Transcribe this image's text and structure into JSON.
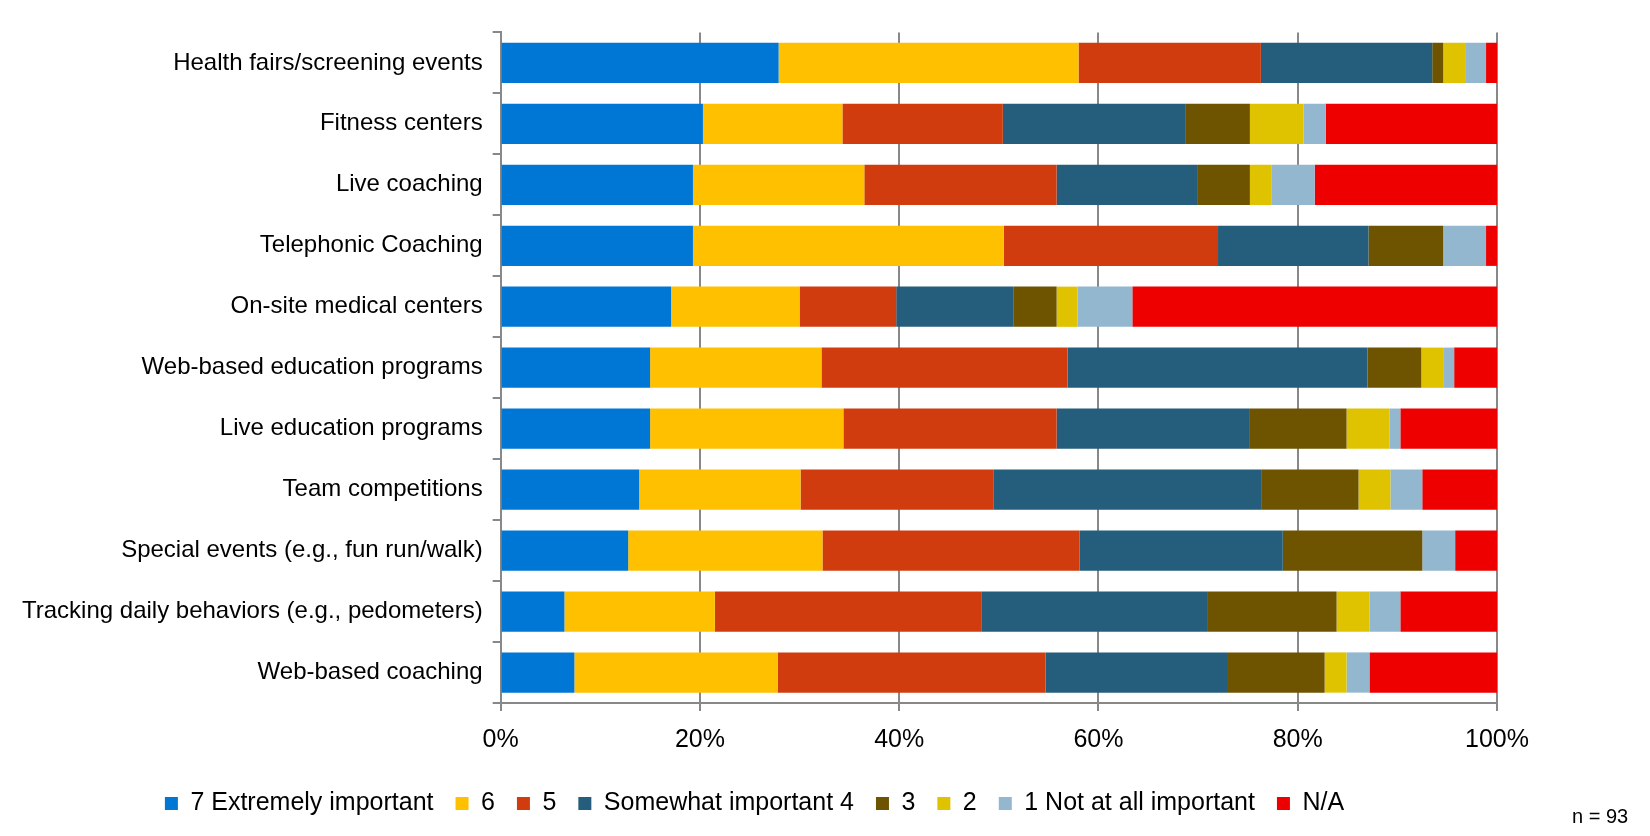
{
  "chart_data": {
    "type": "bar",
    "orientation": "horizontal",
    "stacked": true,
    "categories": [
      "Health fairs/screening events",
      "Fitness centers",
      "Live coaching",
      "Telephonic Coaching",
      "On-site medical centers",
      "Web-based education programs",
      "Live education programs",
      "Team competitions",
      "Special events (e.g., fun run/walk)",
      "Tracking daily behaviors (e.g., pedometers)",
      "Web-based coaching"
    ],
    "series": [
      {
        "name": "7 Extremely important",
        "color": "#0077d4",
        "values": [
          27.9,
          20.3,
          19.3,
          19.3,
          17.1,
          15.0,
          15.0,
          13.9,
          12.8,
          6.4,
          7.4
        ]
      },
      {
        "name": "6",
        "color": "#ffc000",
        "values": [
          30.1,
          14.0,
          17.2,
          31.2,
          12.9,
          17.2,
          19.4,
          16.2,
          19.5,
          15.1,
          20.4
        ]
      },
      {
        "name": "5",
        "color": "#d03c0e",
        "values": [
          18.3,
          16.1,
          19.3,
          21.5,
          9.7,
          24.7,
          21.4,
          19.4,
          25.8,
          26.8,
          26.9
        ]
      },
      {
        "name": "Somewhat important 4",
        "color": "#255e7c",
        "values": [
          17.2,
          18.3,
          14.1,
          15.1,
          11.8,
          30.1,
          19.4,
          26.9,
          20.4,
          22.6,
          18.3
        ]
      },
      {
        "name": "3",
        "color": "#6e5400",
        "values": [
          1.1,
          6.5,
          5.3,
          7.5,
          4.3,
          5.4,
          9.7,
          9.7,
          14.0,
          13.0,
          9.7
        ]
      },
      {
        "name": "2",
        "color": "#dfc300",
        "values": [
          2.2,
          5.4,
          2.2,
          0,
          2.1,
          2.2,
          4.3,
          3.2,
          0,
          3.3,
          2.2
        ]
      },
      {
        "name": "1 Not at all important",
        "color": "#93b7cf",
        "values": [
          2.1,
          2.2,
          4.3,
          4.3,
          5.5,
          1.1,
          1.1,
          3.2,
          3.3,
          3.1,
          2.3
        ]
      },
      {
        "name": "N/A",
        "color": "#ee0000",
        "values": [
          1.1,
          17.2,
          18.3,
          1.1,
          36.6,
          4.3,
          9.7,
          7.5,
          4.2,
          9.7,
          12.8
        ]
      }
    ],
    "xlim": [
      0,
      100
    ],
    "xticks": [
      {
        "value": 0,
        "label": "0%"
      },
      {
        "value": 20,
        "label": "20%"
      },
      {
        "value": 40,
        "label": "40%"
      },
      {
        "value": 60,
        "label": "60%"
      },
      {
        "value": 80,
        "label": "80%"
      },
      {
        "value": 100,
        "label": "100%"
      }
    ],
    "grid": "x",
    "legend": "bottom",
    "annotations": [
      "n = 93"
    ]
  }
}
